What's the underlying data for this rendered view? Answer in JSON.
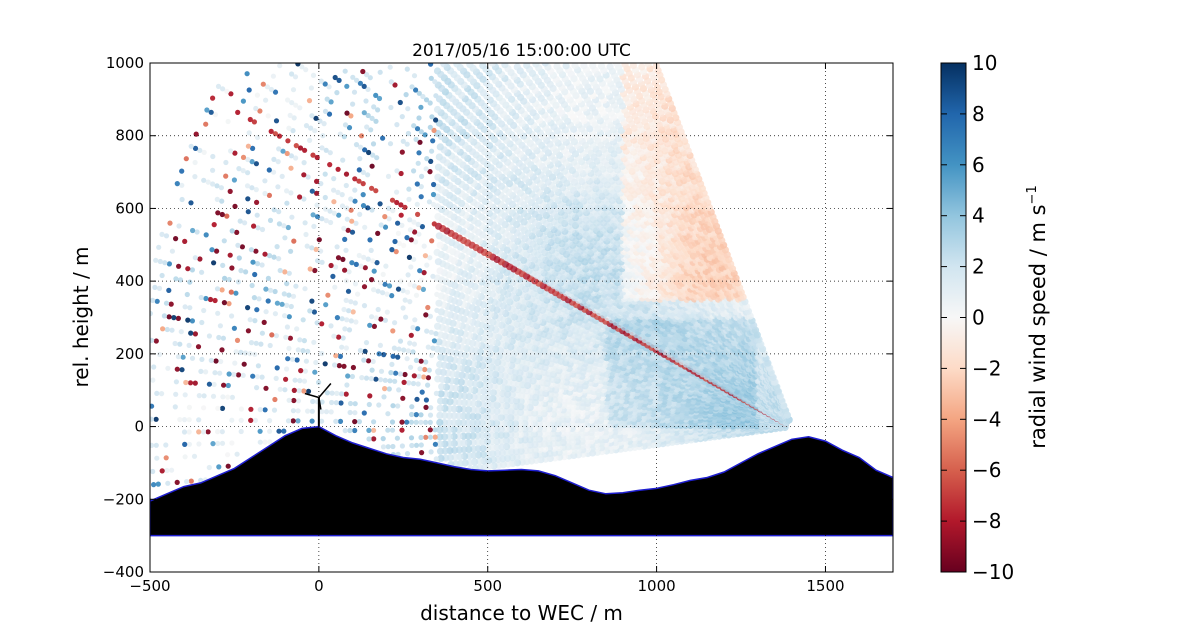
{
  "chart_data": {
    "type": "scatter",
    "title": "2017/05/16 15:00:00 UTC",
    "xlabel": "distance to WEC / m",
    "ylabel": "rel. height / m",
    "xlim": [
      -500,
      1700
    ],
    "ylim": [
      -400,
      1000
    ],
    "xticks": [
      -500,
      0,
      500,
      1000,
      1500
    ],
    "yticks": [
      -400,
      -200,
      0,
      200,
      400,
      600,
      800,
      1000
    ],
    "grid": true,
    "colorbar": {
      "label": "radial wind speed / m s",
      "label_superscript": "−1",
      "range": [
        -10,
        10
      ],
      "ticks": [
        -10,
        -8,
        -6,
        -4,
        -2,
        0,
        2,
        4,
        6,
        8,
        10
      ],
      "colormap": "RdBu",
      "colors": [
        "#67001f",
        "#b2182b",
        "#d6604d",
        "#f4a582",
        "#fddbc7",
        "#f7f7f7",
        "#d1e5f0",
        "#92c5de",
        "#4393c3",
        "#2166ac",
        "#053061"
      ]
    },
    "scan": {
      "origin": [
        1400,
        0
      ],
      "elevation_range_deg": [
        -7,
        68
      ],
      "max_range_m": 1950
    },
    "terrain": [
      [
        -500,
        -205
      ],
      [
        -450,
        -185
      ],
      [
        -400,
        -165
      ],
      [
        -350,
        -155
      ],
      [
        -300,
        -135
      ],
      [
        -250,
        -115
      ],
      [
        -200,
        -85
      ],
      [
        -150,
        -55
      ],
      [
        -100,
        -25
      ],
      [
        -50,
        -5
      ],
      [
        0,
        0
      ],
      [
        50,
        -25
      ],
      [
        100,
        -45
      ],
      [
        150,
        -60
      ],
      [
        200,
        -75
      ],
      [
        250,
        -85
      ],
      [
        300,
        -90
      ],
      [
        350,
        -100
      ],
      [
        400,
        -110
      ],
      [
        450,
        -118
      ],
      [
        500,
        -122
      ],
      [
        550,
        -120
      ],
      [
        600,
        -118
      ],
      [
        650,
        -122
      ],
      [
        700,
        -135
      ],
      [
        750,
        -155
      ],
      [
        800,
        -175
      ],
      [
        850,
        -185
      ],
      [
        900,
        -182
      ],
      [
        950,
        -175
      ],
      [
        1000,
        -170
      ],
      [
        1050,
        -160
      ],
      [
        1100,
        -148
      ],
      [
        1150,
        -140
      ],
      [
        1200,
        -125
      ],
      [
        1250,
        -100
      ],
      [
        1300,
        -75
      ],
      [
        1350,
        -55
      ],
      [
        1400,
        -35
      ],
      [
        1450,
        -28
      ],
      [
        1500,
        -40
      ],
      [
        1550,
        -65
      ],
      [
        1600,
        -85
      ],
      [
        1650,
        -120
      ],
      [
        1700,
        -140
      ]
    ],
    "terrain_floor": -300,
    "wec_position": [
      0,
      0
    ],
    "wec_hub_height": 80
  }
}
